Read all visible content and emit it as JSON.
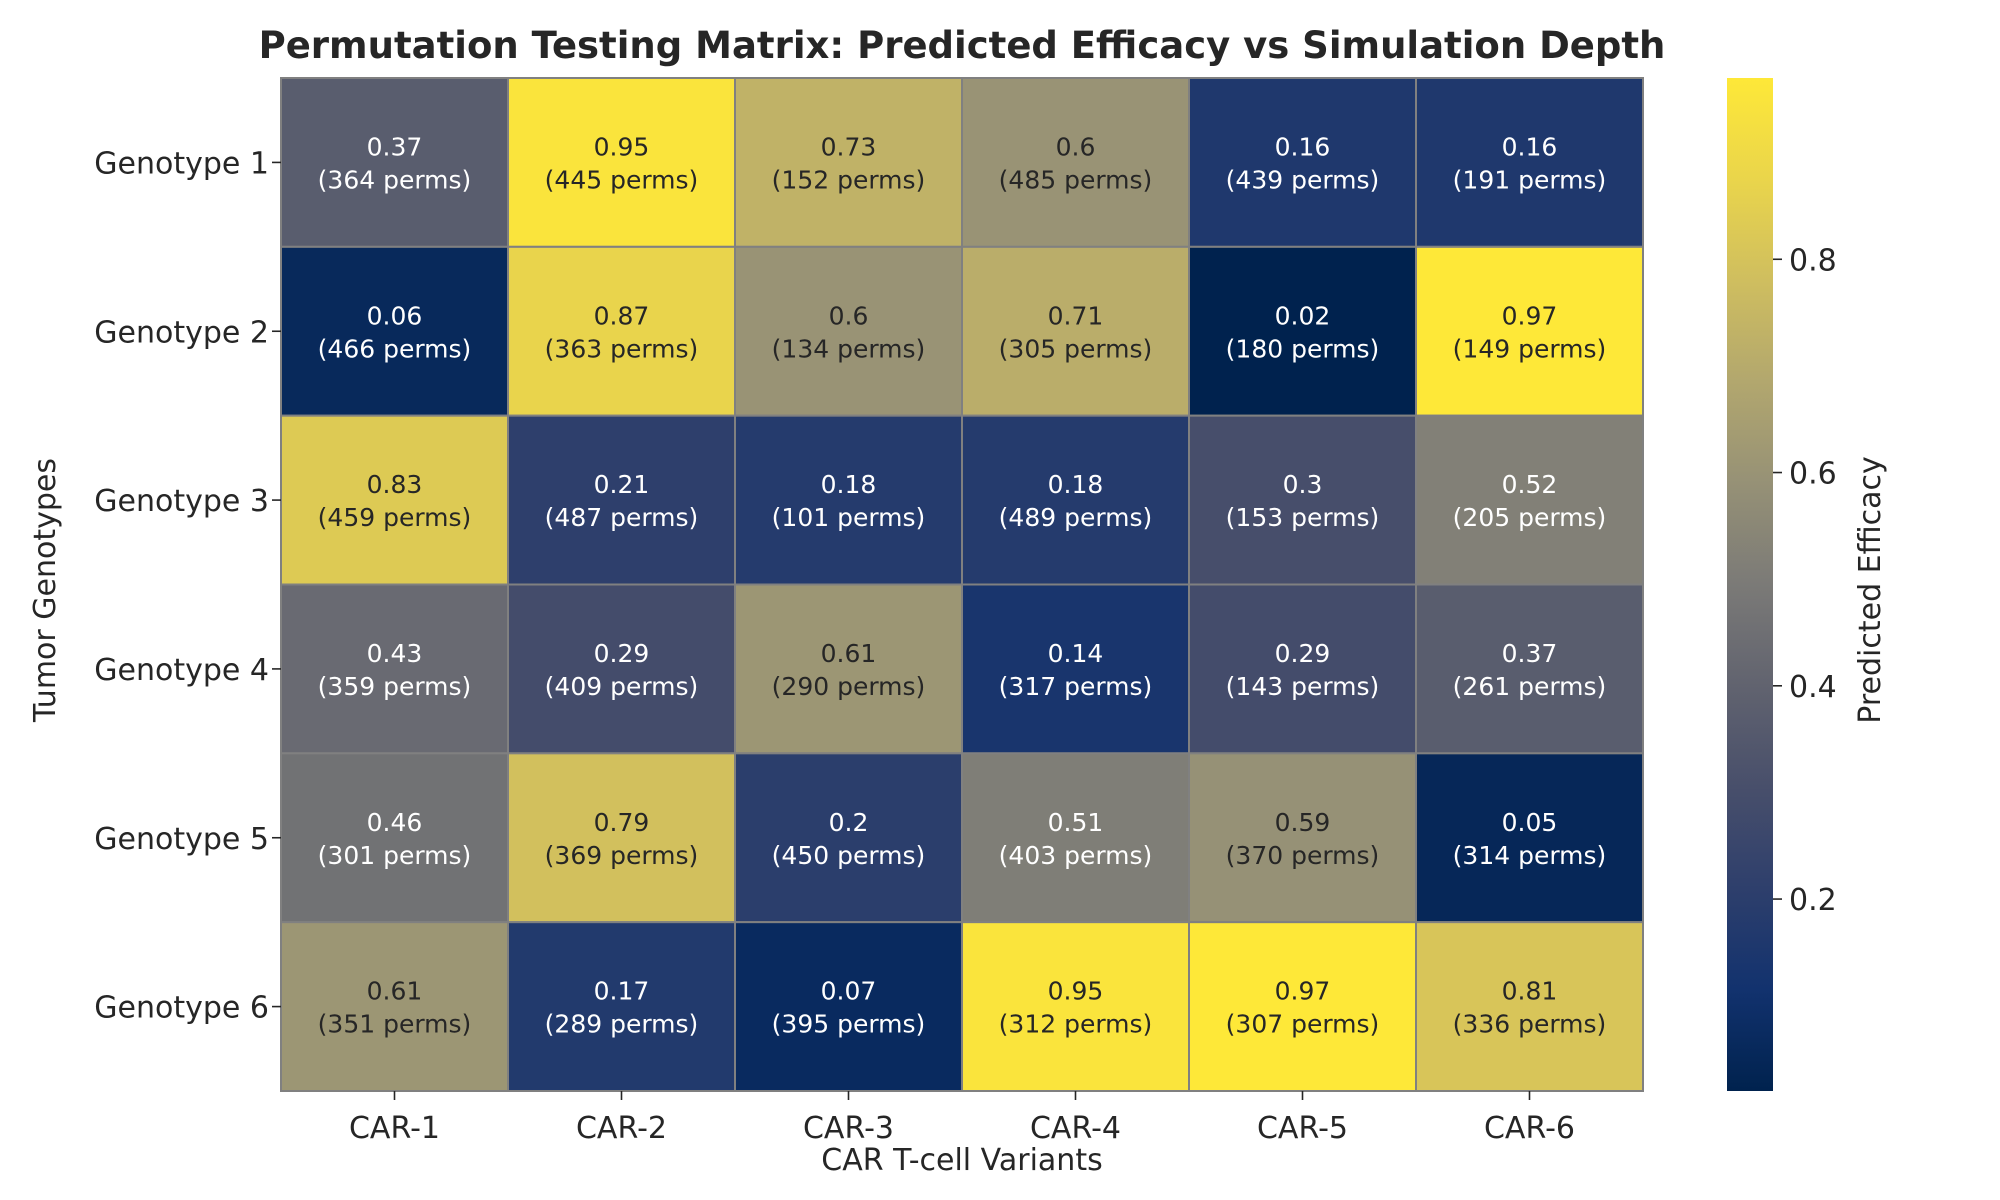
{
  "chart_data": {
    "type": "heatmap",
    "title": "Permutation Testing Matrix: Predicted Efficacy vs Simulation Depth",
    "xlabel": "CAR T-cell Variants",
    "ylabel": "Tumor Genotypes",
    "colorbar_label": "Predicted Efficacy",
    "colormap": "cividis",
    "colorbar_range": [
      0.02,
      0.97
    ],
    "colorbar_ticks": [
      "0.2",
      "0.4",
      "0.6",
      "0.8"
    ],
    "colorbar_tick_values": [
      0.2,
      0.4,
      0.6,
      0.8
    ],
    "x_categories": [
      "CAR-1",
      "CAR-2",
      "CAR-3",
      "CAR-4",
      "CAR-5",
      "CAR-6"
    ],
    "y_categories": [
      "Genotype 1",
      "Genotype 2",
      "Genotype 3",
      "Genotype 4",
      "Genotype 5",
      "Genotype 6"
    ],
    "values": [
      [
        0.37,
        0.95,
        0.73,
        0.6,
        0.16,
        0.16
      ],
      [
        0.06,
        0.87,
        0.6,
        0.71,
        0.02,
        0.97
      ],
      [
        0.83,
        0.21,
        0.18,
        0.18,
        0.3,
        0.52
      ],
      [
        0.43,
        0.29,
        0.61,
        0.14,
        0.29,
        0.37
      ],
      [
        0.46,
        0.79,
        0.2,
        0.51,
        0.59,
        0.05
      ],
      [
        0.61,
        0.17,
        0.07,
        0.95,
        0.97,
        0.81
      ]
    ],
    "value_labels": [
      [
        "0.37",
        "0.95",
        "0.73",
        "0.6",
        "0.16",
        "0.16"
      ],
      [
        "0.06",
        "0.87",
        "0.6",
        "0.71",
        "0.02",
        "0.97"
      ],
      [
        "0.83",
        "0.21",
        "0.18",
        "0.18",
        "0.3",
        "0.52"
      ],
      [
        "0.43",
        "0.29",
        "0.61",
        "0.14",
        "0.29",
        "0.37"
      ],
      [
        "0.46",
        "0.79",
        "0.2",
        "0.51",
        "0.59",
        "0.05"
      ],
      [
        "0.61",
        "0.17",
        "0.07",
        "0.95",
        "0.97",
        "0.81"
      ]
    ],
    "perm_labels": [
      [
        "(364 perms)",
        "(445 perms)",
        "(152 perms)",
        "(485 perms)",
        "(439 perms)",
        "(191 perms)"
      ],
      [
        "(466 perms)",
        "(363 perms)",
        "(134 perms)",
        "(305 perms)",
        "(180 perms)",
        "(149 perms)"
      ],
      [
        "(459 perms)",
        "(487 perms)",
        "(101 perms)",
        "(489 perms)",
        "(153 perms)",
        "(205 perms)"
      ],
      [
        "(359 perms)",
        "(409 perms)",
        "(290 perms)",
        "(317 perms)",
        "(143 perms)",
        "(261 perms)"
      ],
      [
        "(301 perms)",
        "(369 perms)",
        "(450 perms)",
        "(403 perms)",
        "(370 perms)",
        "(314 perms)"
      ],
      [
        "(351 perms)",
        "(289 perms)",
        "(395 perms)",
        "(312 perms)",
        "(307 perms)",
        "(336 perms)"
      ]
    ],
    "perms": [
      [
        364,
        445,
        152,
        485,
        439,
        191
      ],
      [
        466,
        363,
        134,
        305,
        180,
        149
      ],
      [
        459,
        487,
        101,
        489,
        153,
        205
      ],
      [
        359,
        409,
        290,
        317,
        143,
        261
      ],
      [
        301,
        369,
        450,
        403,
        370,
        314
      ],
      [
        351,
        289,
        395,
        312,
        307,
        336
      ]
    ],
    "cell_edge_color": "#808080"
  }
}
